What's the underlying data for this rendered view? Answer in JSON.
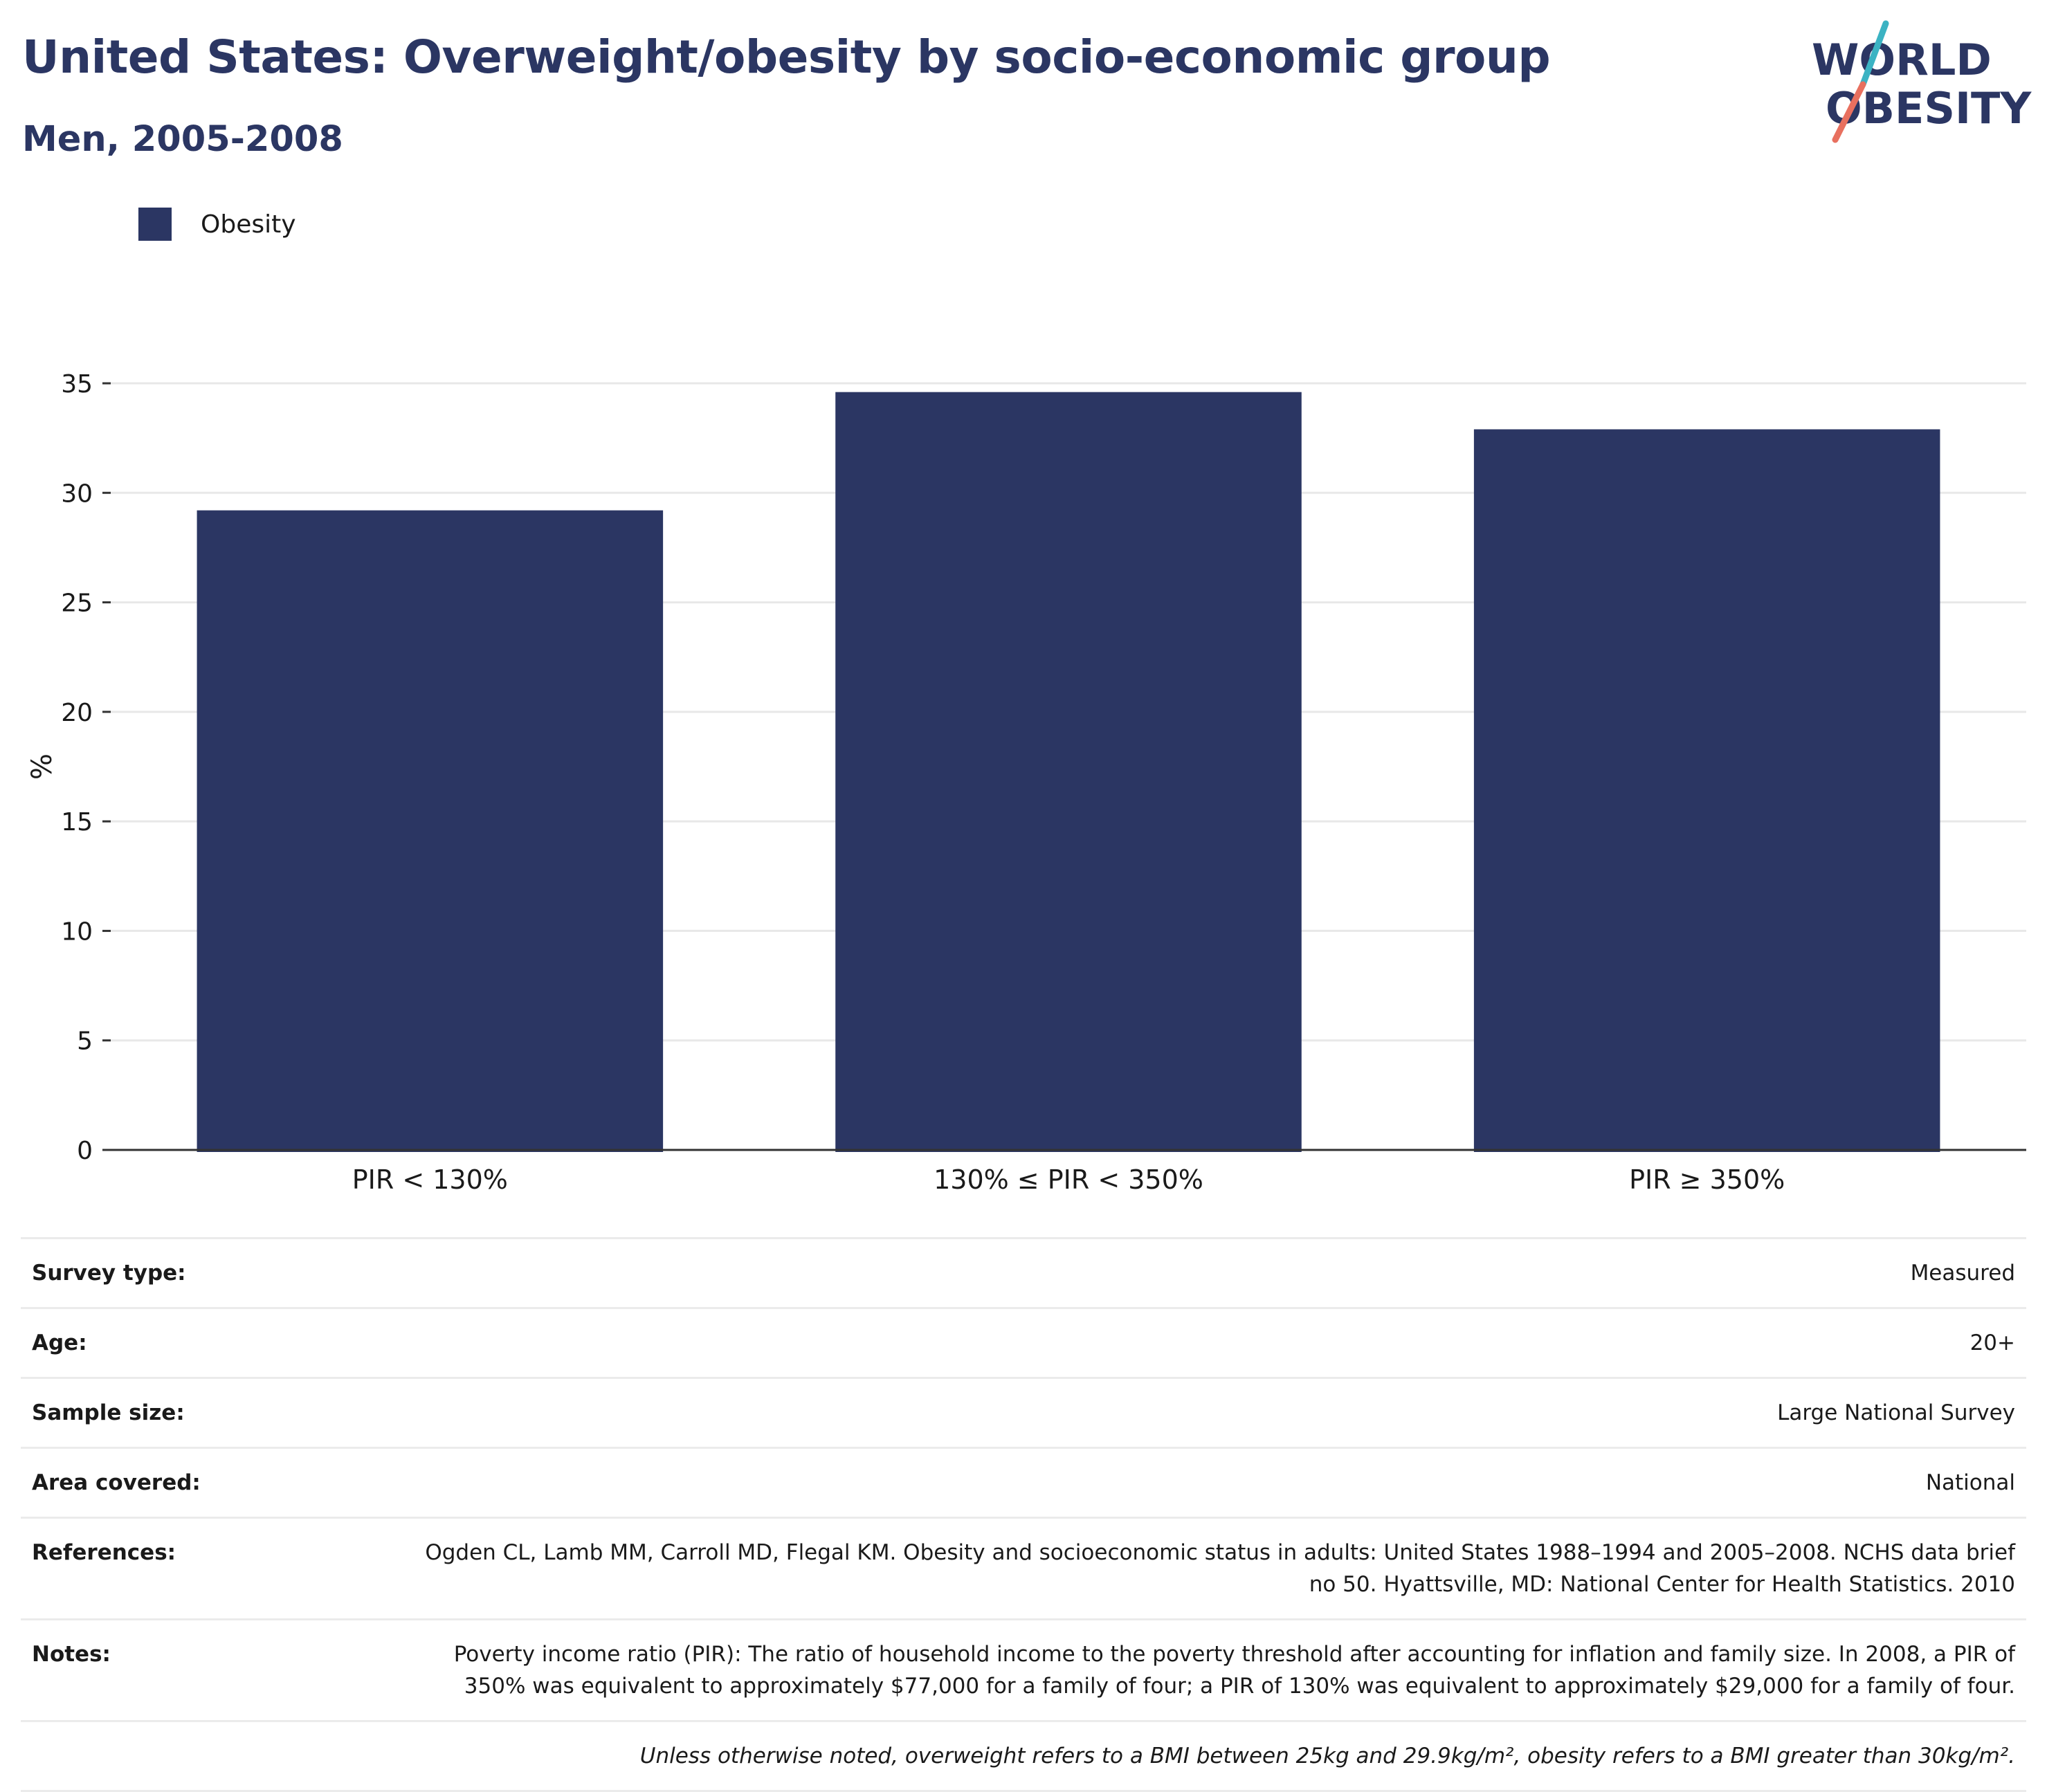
{
  "title": "United States: Overweight/obesity by socio-economic group",
  "subtitle": "Men, 2005-2008",
  "logo": {
    "line1": "WORLD",
    "line2": "OBESITY"
  },
  "colors": {
    "bar": "#2b3663",
    "title": "#2b3663",
    "grid": "#e8e8e8",
    "axis": "#333333",
    "logo_text": "#2b3663",
    "logo_teal": "#3bb3c3",
    "logo_coral": "#e8705f"
  },
  "legend": [
    {
      "label": "Obesity",
      "color": "#2b3663"
    }
  ],
  "chart_data": {
    "type": "bar",
    "categories": [
      "PIR < 130%",
      "130% ≤ PIR < 350%",
      "PIR ≥ 350%"
    ],
    "series": [
      {
        "name": "Obesity",
        "values": [
          29.2,
          34.6,
          32.9
        ]
      }
    ],
    "xlabel": "",
    "ylabel": "%",
    "ylim": [
      0,
      35
    ],
    "yticks": [
      0,
      5,
      10,
      15,
      20,
      25,
      30,
      35
    ],
    "grid": true,
    "legend_position": "top-left"
  },
  "meta": [
    {
      "key": "Survey type:",
      "value": "Measured"
    },
    {
      "key": "Age:",
      "value": "20+"
    },
    {
      "key": "Sample size:",
      "value": "Large National Survey"
    },
    {
      "key": "Area covered:",
      "value": "National"
    },
    {
      "key": "References:",
      "value": "Ogden CL, Lamb MM, Carroll MD, Flegal KM. Obesity and socioeconomic status in adults: United States 1988–1994 and 2005–2008. NCHS data brief no 50. Hyattsville, MD: National Center for Health Statistics. 2010"
    },
    {
      "key": "Notes:",
      "value": "Poverty income ratio (PIR): The ratio of household income to the poverty threshold after accounting for inflation and family size. In 2008, a PIR of 350% was equivalent to approximately $77,000 for a family of four; a PIR of 130% was equivalent to approximately $29,000 for a family of four."
    }
  ],
  "footnote": "Unless otherwise noted, overweight refers to a BMI between 25kg and 29.9kg/m², obesity refers to a BMI greater than 30kg/m²."
}
